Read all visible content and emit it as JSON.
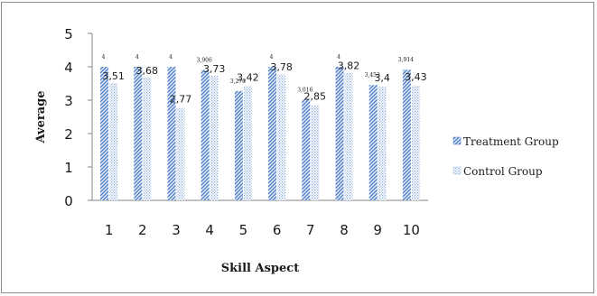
{
  "chart_data": {
    "type": "bar",
    "title": "",
    "xlabel": "Skill Aspect",
    "ylabel": "Average",
    "ylim": [
      0,
      5
    ],
    "yticks": [
      "0",
      "1",
      "2",
      "3",
      "4",
      "5"
    ],
    "categories": [
      "1",
      "2",
      "3",
      "4",
      "5",
      "6",
      "7",
      "8",
      "9",
      "10"
    ],
    "series": [
      {
        "name": "Treatment Group",
        "color": "#4f7fc7",
        "pattern": "diagonal-stripes",
        "values": [
          4,
          4,
          4,
          3.906,
          3.276,
          4,
          3.016,
          4,
          3.453,
          3.914
        ],
        "labels": [
          "4",
          "4",
          "4",
          "3,906",
          "3,276",
          "4",
          "3,016",
          "4",
          "3,453",
          "3,914"
        ]
      },
      {
        "name": "Control Group",
        "color": "#8fb0dc",
        "pattern": "dots",
        "values": [
          3.51,
          3.68,
          2.77,
          3.73,
          3.42,
          3.78,
          2.85,
          3.82,
          3.4,
          3.43
        ],
        "labels": [
          "3,51",
          "3,68",
          "2,77",
          "3,73",
          "3,42",
          "3,78",
          "2,85",
          "3,82",
          "3,4",
          "3,43"
        ]
      }
    ],
    "grid": false,
    "legend_position": "right"
  }
}
